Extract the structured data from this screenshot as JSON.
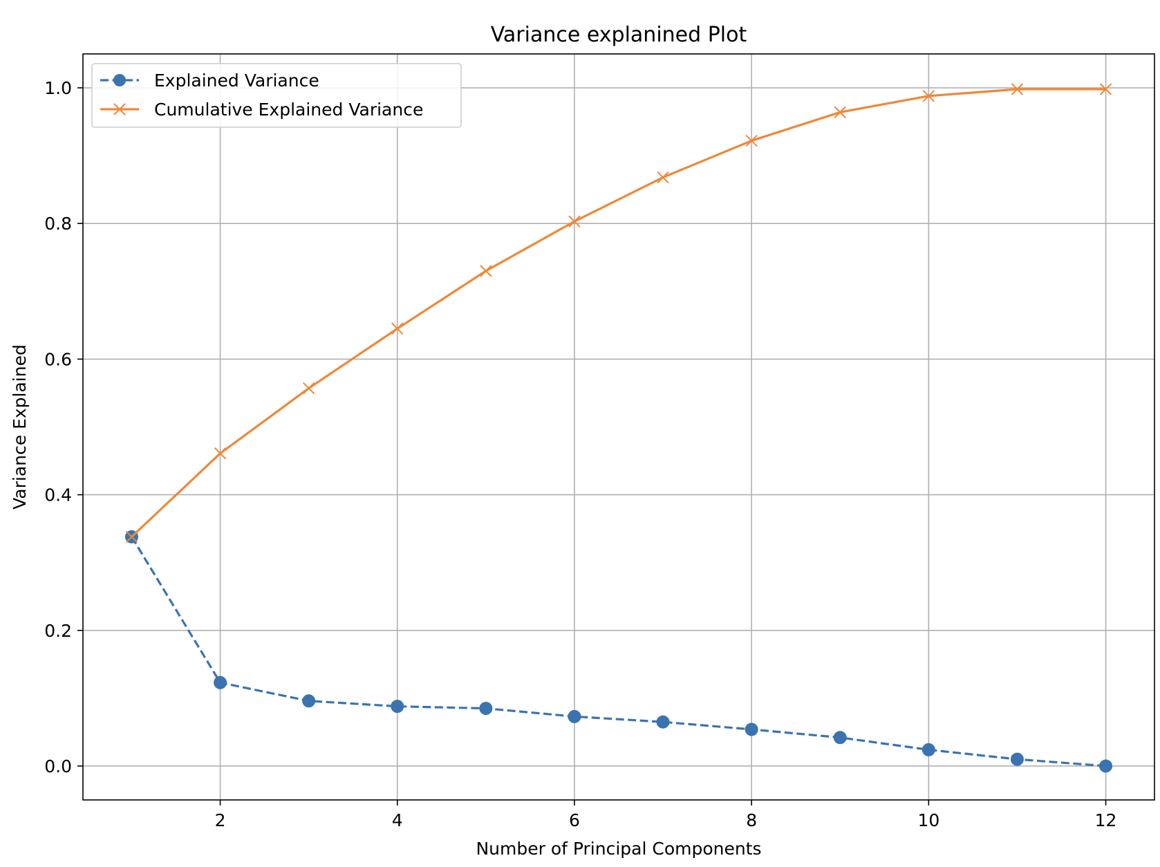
{
  "chart_data": {
    "type": "line",
    "title": "Variance explanined Plot",
    "xlabel": "Number of Principal Components",
    "ylabel": "Variance Explained",
    "x": [
      1,
      2,
      3,
      4,
      5,
      6,
      7,
      8,
      9,
      10,
      11,
      12
    ],
    "xlim": [
      0.45,
      12.55
    ],
    "ylim": [
      -0.05,
      1.05
    ],
    "xticks": [
      2,
      4,
      6,
      8,
      10,
      12
    ],
    "yticks": [
      0.0,
      0.2,
      0.4,
      0.6,
      0.8,
      1.0
    ],
    "xtick_labels": [
      "2",
      "4",
      "6",
      "8",
      "10",
      "12"
    ],
    "ytick_labels": [
      "0.0",
      "0.2",
      "0.4",
      "0.6",
      "0.8",
      "1.0"
    ],
    "grid": true,
    "legend_position": "top-left",
    "series": [
      {
        "name": "Explained Variance",
        "values": [
          0.338,
          0.123,
          0.096,
          0.088,
          0.085,
          0.073,
          0.065,
          0.054,
          0.042,
          0.024,
          0.01,
          0.0
        ],
        "color": "#3a73b0",
        "line_style": "dashed",
        "marker": "circle"
      },
      {
        "name": "Cumulative Explained Variance",
        "values": [
          0.338,
          0.461,
          0.557,
          0.645,
          0.73,
          0.803,
          0.868,
          0.922,
          0.964,
          0.988,
          0.998,
          0.998
        ],
        "color": "#f08736",
        "line_style": "solid",
        "marker": "x"
      }
    ]
  }
}
